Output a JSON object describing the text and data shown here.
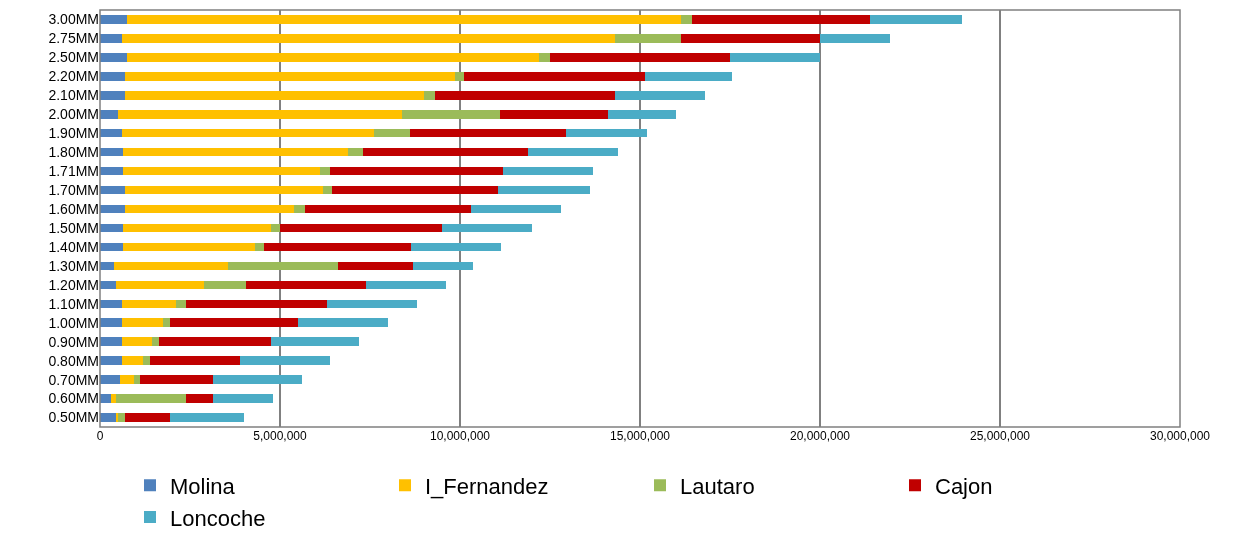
{
  "chart_data": {
    "type": "bar",
    "orientation": "horizontal",
    "stacked": true,
    "categories": [
      "3.00MM",
      "2.75MM",
      "2.50MM",
      "2.20MM",
      "2.10MM",
      "2.00MM",
      "1.90MM",
      "1.80MM",
      "1.71MM",
      "1.70MM",
      "1.60MM",
      "1.50MM",
      "1.40MM",
      "1.30MM",
      "1.20MM",
      "1.10MM",
      "1.00MM",
      "0.90MM",
      "0.80MM",
      "0.70MM",
      "0.60MM",
      "0.50MM"
    ],
    "series": [
      {
        "name": "Molina",
        "color": "#4f81bd",
        "values": [
          750000,
          600000,
          750000,
          700000,
          700000,
          500000,
          600000,
          650000,
          650000,
          700000,
          700000,
          650000,
          650000,
          400000,
          450000,
          600000,
          600000,
          600000,
          600000,
          550000,
          300000,
          450000
        ]
      },
      {
        "name": "I_Fernandez",
        "color": "#ffc000",
        "values": [
          15400000,
          13700000,
          11450000,
          9150000,
          8300000,
          7900000,
          7000000,
          6250000,
          5450000,
          5500000,
          4700000,
          4100000,
          3650000,
          3150000,
          2450000,
          1500000,
          1150000,
          850000,
          600000,
          400000,
          150000,
          50000
        ]
      },
      {
        "name": "Lautaro",
        "color": "#9bbb59",
        "values": [
          300000,
          1850000,
          300000,
          250000,
          300000,
          2700000,
          1000000,
          400000,
          300000,
          250000,
          300000,
          250000,
          250000,
          3050000,
          1150000,
          300000,
          200000,
          200000,
          200000,
          150000,
          1950000,
          200000
        ]
      },
      {
        "name": "Cajon",
        "color": "#c00000",
        "values": [
          4950000,
          3850000,
          5000000,
          5050000,
          5000000,
          3000000,
          4350000,
          4600000,
          4800000,
          4600000,
          4600000,
          4500000,
          4100000,
          2100000,
          3350000,
          3900000,
          3550000,
          3100000,
          2500000,
          2050000,
          750000,
          1250000
        ]
      },
      {
        "name": "Loncoche",
        "color": "#4bacc6",
        "values": [
          2550000,
          1950000,
          2500000,
          2400000,
          2500000,
          1900000,
          2250000,
          2500000,
          2500000,
          2550000,
          2500000,
          2500000,
          2500000,
          1650000,
          2200000,
          2500000,
          2500000,
          2450000,
          2500000,
          2450000,
          1650000,
          2050000
        ]
      }
    ],
    "xlim": [
      0,
      30000000
    ],
    "xticks": [
      0,
      {
        "value": 5000000,
        "label": "5,000,000"
      },
      {
        "value": 10000000,
        "label": "10,000,000"
      },
      {
        "value": 15000000,
        "label": "15,000,000"
      },
      {
        "value": 20000000,
        "label": "20,000,000"
      },
      {
        "value": 25000000,
        "label": "25,000,000"
      },
      {
        "value": 30000000,
        "label": "30,000,000"
      }
    ],
    "grid": "x",
    "legend": "bottom"
  }
}
